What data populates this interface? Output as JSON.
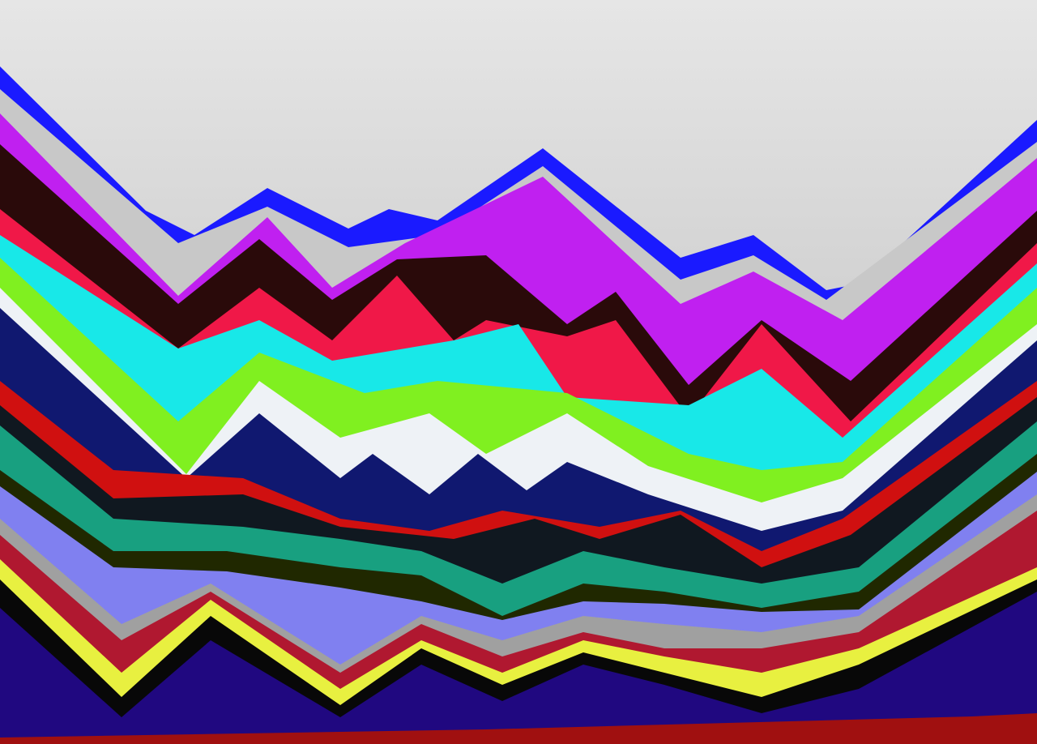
{
  "background": {
    "top": "#e6e6e6",
    "bottom": "#d2d2d2"
  },
  "bands": [
    {
      "name": "blue-band",
      "color": "#1a1aff"
    },
    {
      "name": "light-gray-band",
      "color": "#c8c8c8"
    },
    {
      "name": "magenta-band",
      "color": "#c020f0"
    },
    {
      "name": "dark-brown-band",
      "color": "#2a0a0a"
    },
    {
      "name": "crimson-band",
      "color": "#f01848"
    },
    {
      "name": "cyan-band",
      "color": "#18e8e8"
    },
    {
      "name": "lime-band",
      "color": "#80f020"
    },
    {
      "name": "white-band",
      "color": "#eef2f6"
    },
    {
      "name": "navy-band",
      "color": "#101870"
    },
    {
      "name": "red-band",
      "color": "#d01010"
    },
    {
      "name": "black-band",
      "color": "#101820"
    },
    {
      "name": "teal-band",
      "color": "#18a080"
    },
    {
      "name": "olive-band",
      "color": "#202800"
    },
    {
      "name": "lavender-band",
      "color": "#8080f0"
    },
    {
      "name": "gray-band",
      "color": "#a0a0a0"
    },
    {
      "name": "dark-red-band",
      "color": "#b01830"
    },
    {
      "name": "yellow-band",
      "color": "#e8f040"
    },
    {
      "name": "black-lower-band",
      "color": "#080808"
    },
    {
      "name": "indigo-band",
      "color": "#200880"
    },
    {
      "name": "bottom-red-band",
      "color": "#a01010"
    }
  ]
}
